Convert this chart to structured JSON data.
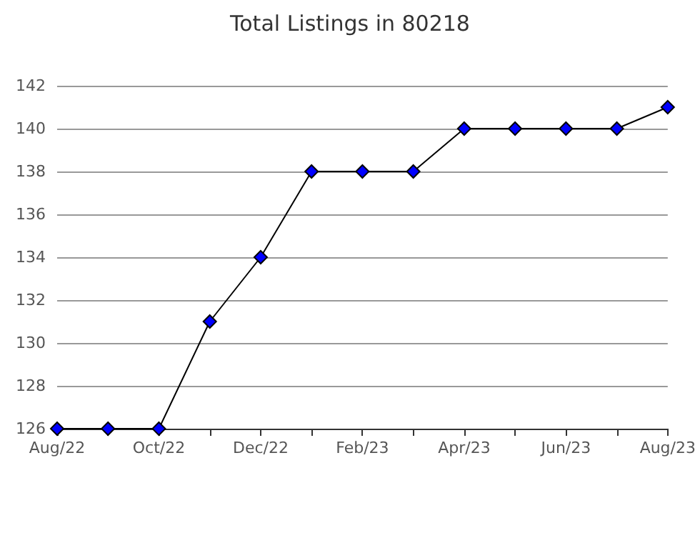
{
  "chart_data": {
    "type": "line",
    "title": "Total Listings in 80218",
    "categories": [
      "Aug/22",
      null,
      "Oct/22",
      null,
      "Dec/22",
      null,
      "Feb/23",
      null,
      "Apr/23",
      null,
      "Jun/23",
      null,
      "Aug/23"
    ],
    "series": [
      {
        "color": "#0000ff",
        "values": [
          126,
          126,
          126,
          131,
          134,
          138,
          138,
          138,
          140,
          140,
          140,
          140,
          141
        ]
      }
    ],
    "ylim": [
      126,
      142
    ],
    "yticks": [
      126,
      128,
      130,
      132,
      134,
      136,
      138,
      140,
      142
    ],
    "grid": "y",
    "marker": "diamond",
    "line_style": "solid"
  }
}
